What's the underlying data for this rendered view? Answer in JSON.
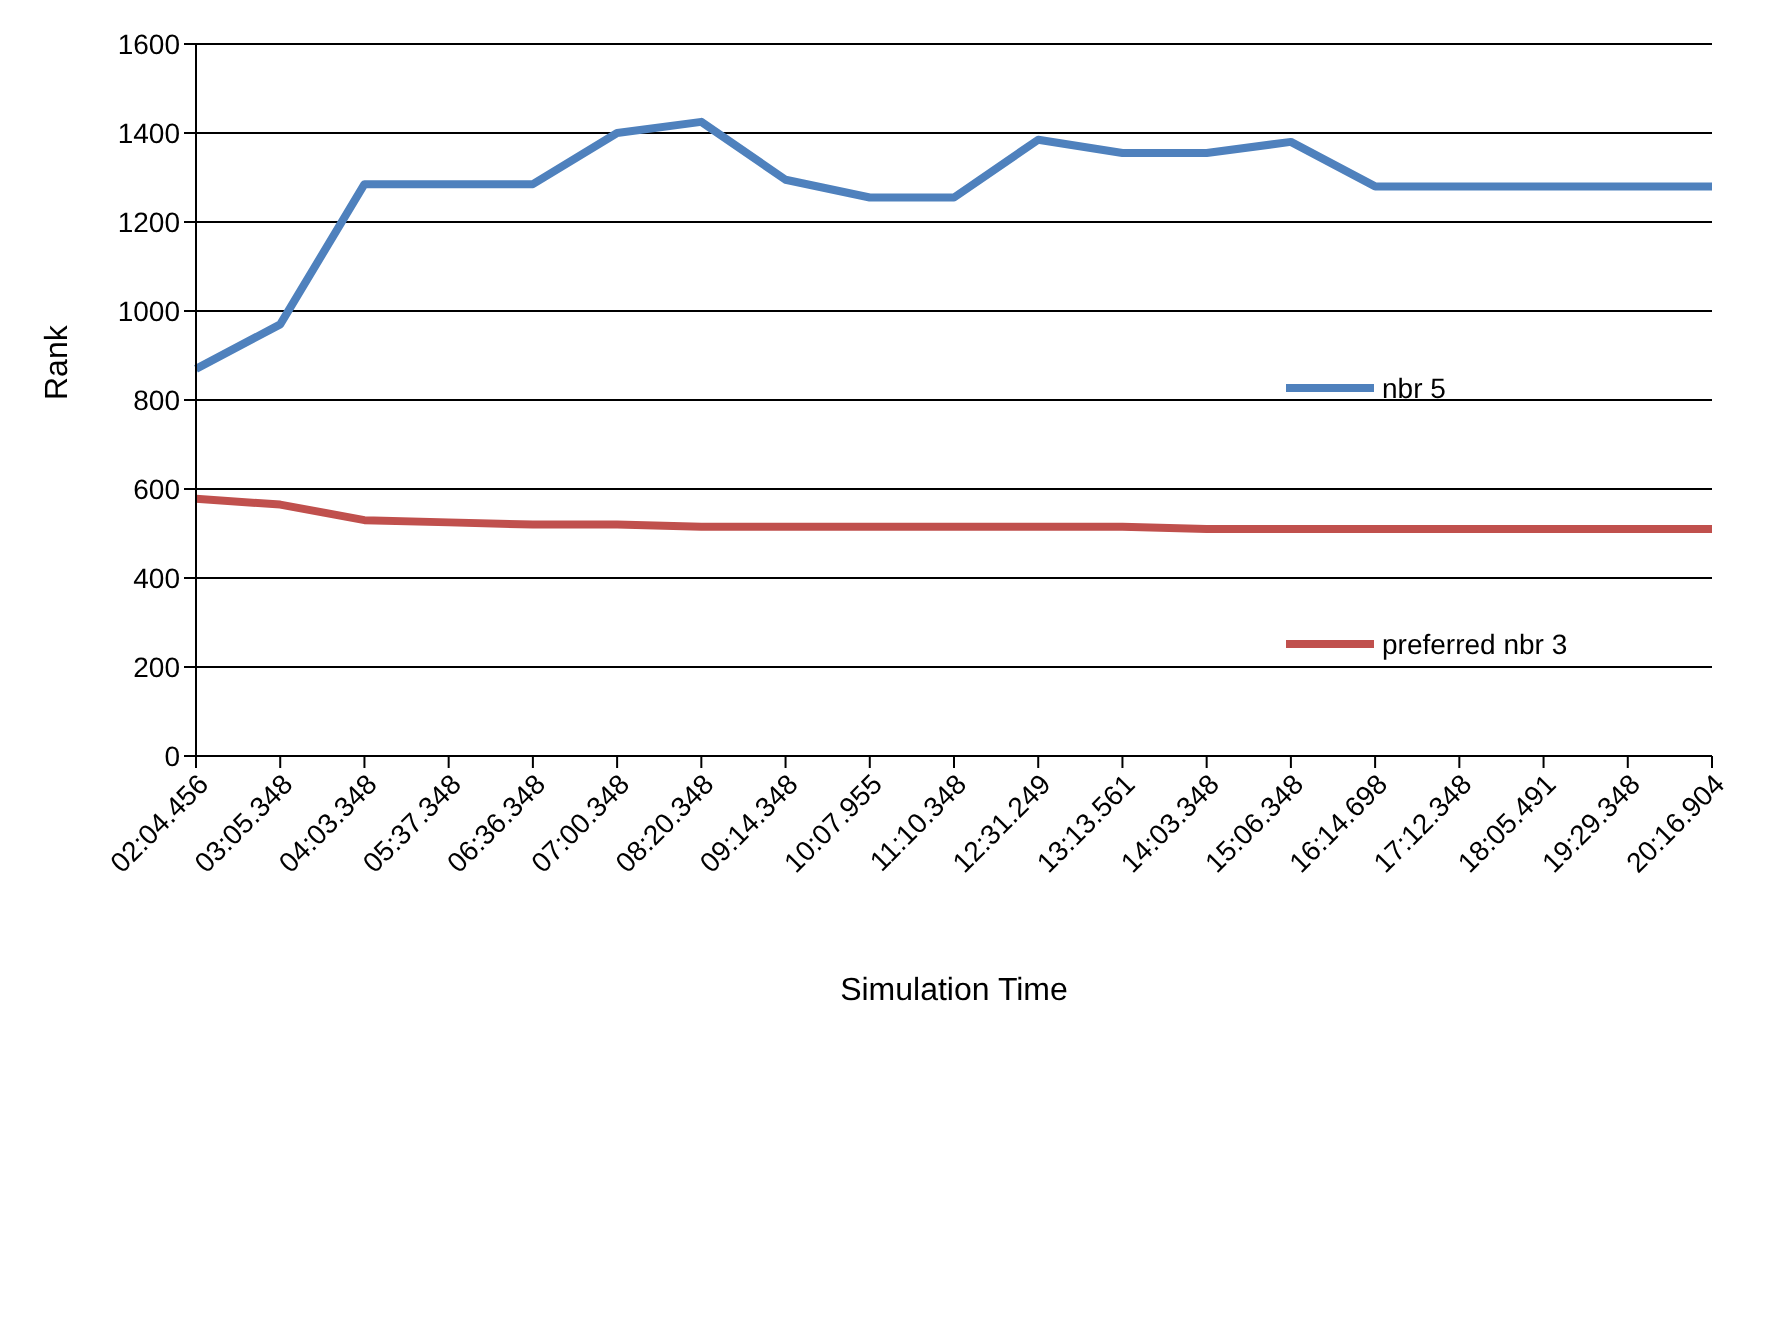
{
  "chart_data": {
    "type": "line",
    "xlabel": "Simulation Time",
    "ylabel": "Rank",
    "categories": [
      "02:04.456",
      "03:05.348",
      "04:03.348",
      "05:37.348",
      "06:36.348",
      "07:00.348",
      "08:20.348",
      "09:14.348",
      "10:07.955",
      "11:10.348",
      "12:31.249",
      "13:13.561",
      "14:03.348",
      "15:06.348",
      "16:14.698",
      "17:12.348",
      "18:05.491",
      "19:29.348",
      "20:16.904"
    ],
    "series": [
      {
        "name": "nbr 5",
        "color": "#4f81bd",
        "values": [
          870,
          970,
          1285,
          1285,
          1285,
          1400,
          1425,
          1295,
          1255,
          1255,
          1385,
          1355,
          1355,
          1380,
          1280,
          1280,
          1280,
          1280,
          1280
        ]
      },
      {
        "name": "preferred nbr 3",
        "color": "#c0504d",
        "values": [
          578,
          565,
          530,
          525,
          520,
          520,
          515,
          515,
          515,
          515,
          515,
          515,
          510,
          510,
          510,
          510,
          510,
          510,
          510
        ]
      }
    ],
    "ylim": [
      0,
      1600
    ],
    "yticks": [
      0,
      200,
      400,
      600,
      800,
      1000,
      1200,
      1400,
      1600
    ],
    "grid": "y",
    "legend": "right",
    "marker": "none",
    "line_style": "solid"
  }
}
